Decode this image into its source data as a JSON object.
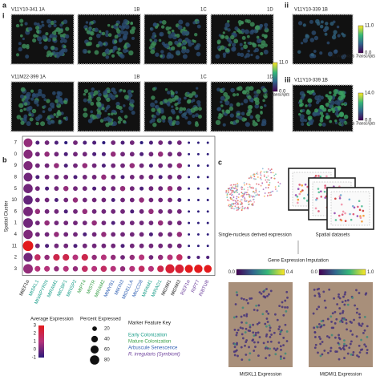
{
  "panel_a": {
    "label": "a",
    "sub_i": "i",
    "sub_ii": "ii",
    "sub_iii": "iii",
    "row1": [
      "V11Y10-341 1A",
      "1B",
      "1C",
      "1D"
    ],
    "row2": [
      "V11M22-399 1A",
      "1B",
      "1C",
      "1D"
    ],
    "colorbar_i": {
      "max": 11.0,
      "max_label": "11.0",
      "min": 0,
      "min_label": "0.0",
      "title": "R. irregularis Transcripts"
    },
    "ii_title": "V11Y10-339 1B",
    "colorbar_ii": {
      "max": 11.0,
      "max_label": "11.0",
      "min": 0,
      "min_label": "0.0",
      "title": "R. irregularis Transcripts"
    },
    "iii_title": "V11Y10-339 1B",
    "colorbar_iii": {
      "max": 14.0,
      "max_label": "14.0",
      "min": 0,
      "min_label": "0.0",
      "title": "M. truncatula Transcripts"
    }
  },
  "panel_b": {
    "label": "b",
    "y_label": "Spatial Cluster",
    "clusters": [
      "7",
      "0",
      "9",
      "8",
      "5",
      "10",
      "6",
      "1",
      "4",
      "11",
      "2",
      "3"
    ],
    "genes": [
      {
        "label": "MtEF1α",
        "color": "#222222"
      },
      {
        "label": "MtSKL1",
        "color": "#1b9e8a"
      },
      {
        "label": "MtVAPYRIN",
        "color": "#1b9e8a"
      },
      {
        "label": "MtRAM1",
        "color": "#1b9e8a"
      },
      {
        "label": "MtCBF1",
        "color": "#1b9e8a"
      },
      {
        "label": "MtNSP2",
        "color": "#1b9e8a"
      },
      {
        "label": "MtPT4",
        "color": "#3aa04a"
      },
      {
        "label": "MtSTR",
        "color": "#3aa04a"
      },
      {
        "label": "MtRAM2",
        "color": "#3aa04a"
      },
      {
        "label": "MtMYB1",
        "color": "#2f5fb3"
      },
      {
        "label": "MtKIN3",
        "color": "#2f5fb3"
      },
      {
        "label": "MtDELLA",
        "color": "#2f5fb3"
      },
      {
        "label": "MtCCD8",
        "color": "#2f5fb3"
      },
      {
        "label": "MtPAM1",
        "color": "#1b9e8a"
      },
      {
        "label": "MtRAD1",
        "color": "#1b9e8a"
      },
      {
        "label": "MtDMI1",
        "color": "#222222"
      },
      {
        "label": "MtDMI3",
        "color": "#222222"
      },
      {
        "label": "RiEF1α",
        "color": "#6a3d9a"
      },
      {
        "label": "RiPT7",
        "color": "#6a3d9a"
      },
      {
        "label": "RiBTUB",
        "color": "#6a3d9a"
      }
    ],
    "avg_expression": [
      [
        0.5,
        -0.5,
        0,
        -0.5,
        -1,
        0,
        -0.5,
        -0.5,
        -1,
        0,
        -0.5,
        0,
        -1,
        -0.5,
        0,
        -0.5,
        0,
        -1,
        -1,
        -1
      ],
      [
        0.3,
        0,
        0.5,
        0,
        -0.5,
        0,
        0,
        -0.5,
        -0.5,
        0.5,
        0,
        0,
        -0.5,
        0,
        0.5,
        0,
        0,
        -1,
        -1,
        -1
      ],
      [
        0.2,
        0,
        0,
        0.5,
        -0.5,
        0,
        0.5,
        0,
        -0.5,
        0,
        0,
        0.5,
        0,
        -0.5,
        0,
        0,
        0.5,
        -1,
        -1,
        -1
      ],
      [
        0,
        -0.5,
        0,
        0,
        0,
        -0.5,
        0,
        0,
        0.5,
        0,
        -0.5,
        0,
        0,
        0,
        -0.5,
        0,
        0,
        -1,
        -1,
        -1
      ],
      [
        0,
        0,
        -0.5,
        0,
        0.5,
        0,
        0,
        -0.5,
        0,
        0,
        0.5,
        0,
        -0.5,
        0,
        0,
        0.5,
        0,
        -1,
        -1,
        -1
      ],
      [
        -0.2,
        0,
        0,
        -0.5,
        0,
        0.5,
        0,
        0,
        0,
        -0.5,
        0,
        0,
        0.5,
        0,
        0,
        0,
        -0.5,
        -1,
        -1,
        -1
      ],
      [
        0.1,
        0.5,
        0,
        0,
        -0.5,
        0,
        0.5,
        0,
        0,
        0,
        0,
        -0.5,
        0,
        0.5,
        0,
        0,
        0,
        -1,
        -1,
        -1
      ],
      [
        0,
        0,
        0.5,
        0,
        0,
        0,
        0,
        0.5,
        0,
        -0.5,
        0,
        0,
        0,
        0,
        0.5,
        0,
        0,
        -1,
        -1,
        -1
      ],
      [
        0.2,
        0,
        0,
        0.5,
        0,
        0,
        -0.5,
        0,
        0.5,
        0,
        0,
        0,
        0,
        -0.5,
        0,
        0,
        0.5,
        -1,
        -1,
        -1
      ],
      [
        3,
        0,
        -0.5,
        0,
        0,
        -0.5,
        0,
        0,
        0,
        0,
        -0.5,
        0,
        0,
        0,
        0,
        0,
        0,
        -1,
        -1,
        -1
      ],
      [
        0,
        1.5,
        0.5,
        2,
        2,
        1,
        2,
        0.5,
        1,
        0.5,
        0,
        0.5,
        1,
        0,
        0.5,
        1,
        1.5,
        -0.5,
        -0.5,
        -0.5
      ],
      [
        0.5,
        1,
        1,
        0.5,
        1,
        0.5,
        1.5,
        1,
        1.5,
        1,
        0.5,
        1,
        1.5,
        1,
        2,
        2.5,
        2.5,
        3,
        3,
        3
      ]
    ],
    "pct_expressed": [
      [
        70,
        15,
        20,
        15,
        10,
        20,
        15,
        15,
        10,
        20,
        15,
        20,
        10,
        15,
        20,
        15,
        20,
        5,
        5,
        5
      ],
      [
        75,
        20,
        25,
        20,
        15,
        20,
        20,
        15,
        15,
        25,
        20,
        20,
        15,
        20,
        25,
        20,
        20,
        5,
        5,
        5
      ],
      [
        75,
        20,
        20,
        25,
        15,
        20,
        25,
        20,
        15,
        20,
        20,
        25,
        20,
        15,
        20,
        20,
        25,
        5,
        5,
        5
      ],
      [
        70,
        15,
        20,
        20,
        20,
        15,
        20,
        20,
        25,
        20,
        15,
        20,
        20,
        20,
        15,
        20,
        20,
        5,
        5,
        5
      ],
      [
        80,
        20,
        15,
        20,
        25,
        20,
        20,
        15,
        20,
        20,
        25,
        20,
        15,
        20,
        20,
        25,
        20,
        5,
        5,
        5
      ],
      [
        80,
        20,
        20,
        15,
        20,
        25,
        20,
        20,
        20,
        15,
        20,
        20,
        25,
        20,
        20,
        20,
        15,
        5,
        5,
        5
      ],
      [
        85,
        25,
        20,
        20,
        15,
        20,
        25,
        20,
        20,
        20,
        20,
        15,
        20,
        25,
        20,
        20,
        20,
        5,
        5,
        5
      ],
      [
        85,
        20,
        25,
        20,
        20,
        20,
        20,
        25,
        20,
        15,
        20,
        20,
        20,
        20,
        25,
        20,
        20,
        5,
        5,
        5
      ],
      [
        80,
        20,
        20,
        25,
        20,
        20,
        15,
        20,
        25,
        20,
        20,
        20,
        20,
        15,
        20,
        20,
        25,
        5,
        5,
        5
      ],
      [
        100,
        20,
        15,
        20,
        20,
        15,
        20,
        20,
        20,
        20,
        15,
        20,
        20,
        20,
        20,
        20,
        20,
        5,
        5,
        5
      ],
      [
        75,
        35,
        25,
        40,
        40,
        30,
        40,
        25,
        30,
        25,
        20,
        25,
        30,
        20,
        25,
        30,
        35,
        10,
        10,
        10
      ],
      [
        85,
        30,
        30,
        25,
        30,
        25,
        35,
        30,
        35,
        30,
        25,
        30,
        35,
        30,
        40,
        75,
        70,
        60,
        65,
        55
      ]
    ],
    "avg_legend": {
      "title": "Average Expression",
      "ticks": [
        3,
        2,
        1,
        0,
        -1
      ]
    },
    "pct_legend": {
      "title": "Percent Expressed",
      "ticks": [
        20,
        40,
        60,
        80
      ]
    },
    "key": {
      "title": "Marker Feature Key",
      "items": [
        {
          "label": "Early Colonization",
          "color": "#1b9e8a"
        },
        {
          "label": "Mature Colonization",
          "color": "#3aa04a"
        },
        {
          "label": "Arbuscule Senescence",
          "color": "#2f5fb3"
        },
        {
          "label": "R. irregularis (Symbiont)",
          "color": "#6a3d9a"
        }
      ]
    }
  },
  "panel_c": {
    "label": "c",
    "snrna": "Single-nucleus derived expression",
    "spatial": "Spatial datasets",
    "imputation": "Gene Expression Imputation",
    "colorbar_left": {
      "min": 0,
      "min_label": "0.0",
      "max": 0.4,
      "max_label": "0.4"
    },
    "colorbar_right": {
      "min": 0,
      "min_label": "0.0",
      "max": 1.0,
      "max_label": "1.0"
    },
    "left_caption": "MtSKL1 Expression",
    "right_caption": "MtDMI1 Expression"
  }
}
